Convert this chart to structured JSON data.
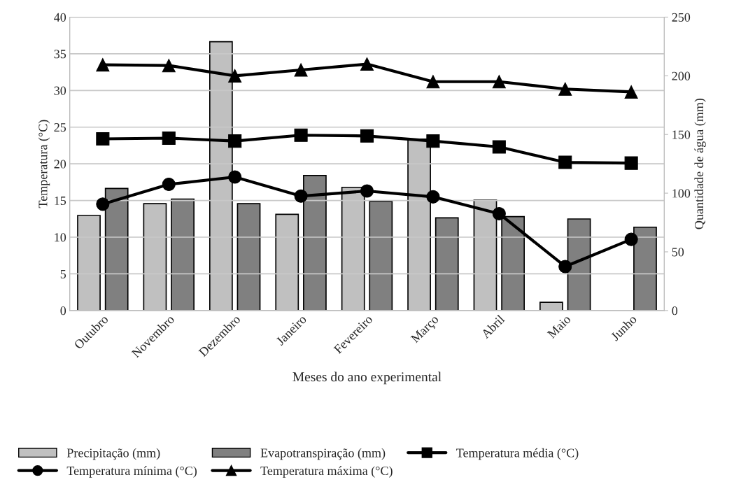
{
  "chart_data": {
    "type": "bar",
    "xlabel": "Meses do ano experimental",
    "ylabel": "Temperatura (°C)",
    "y2label": "Quantidade de água (mm)",
    "categories": [
      "Outubro",
      "Novembro",
      "Dezembro",
      "Janeiro",
      "Fevereiro",
      "Março",
      "Abril",
      "Maio",
      "Junho"
    ],
    "series": [
      {
        "name": "Precipitação (mm)",
        "axis": "y2",
        "color": "#c0c0c0",
        "values": [
          81,
          91,
          229,
          82,
          105,
          146,
          94,
          7,
          0
        ]
      },
      {
        "name": "Evapotranspiração (mm)",
        "axis": "y2",
        "color": "#808080",
        "values": [
          104,
          95,
          91,
          115,
          93,
          79,
          80,
          78,
          71
        ]
      },
      {
        "name": "Temperatura média (°C)",
        "type": "line",
        "marker": "square",
        "color": "#000000",
        "values": [
          23.4,
          23.5,
          23.1,
          23.9,
          23.8,
          23.1,
          22.3,
          20.2,
          20.1
        ]
      },
      {
        "name": "Temperatura mínima (°C)",
        "type": "line",
        "marker": "circle",
        "color": "#000000",
        "values": [
          14.5,
          17.2,
          18.2,
          15.6,
          16.3,
          15.5,
          13.2,
          6.0,
          9.7
        ]
      },
      {
        "name": "Temperatura máxima (°C)",
        "type": "line",
        "marker": "triangle",
        "color": "#000000",
        "values": [
          33.5,
          33.4,
          32.0,
          32.8,
          33.6,
          31.2,
          31.2,
          30.2,
          29.8
        ]
      }
    ],
    "ylim": [
      0,
      40
    ],
    "yticks": [
      0,
      5,
      10,
      15,
      20,
      25,
      30,
      35,
      40
    ],
    "y2lim": [
      0,
      250
    ],
    "y2ticks": [
      0,
      50,
      100,
      150,
      200,
      250
    ],
    "grid": "y",
    "legend": "bottom"
  }
}
